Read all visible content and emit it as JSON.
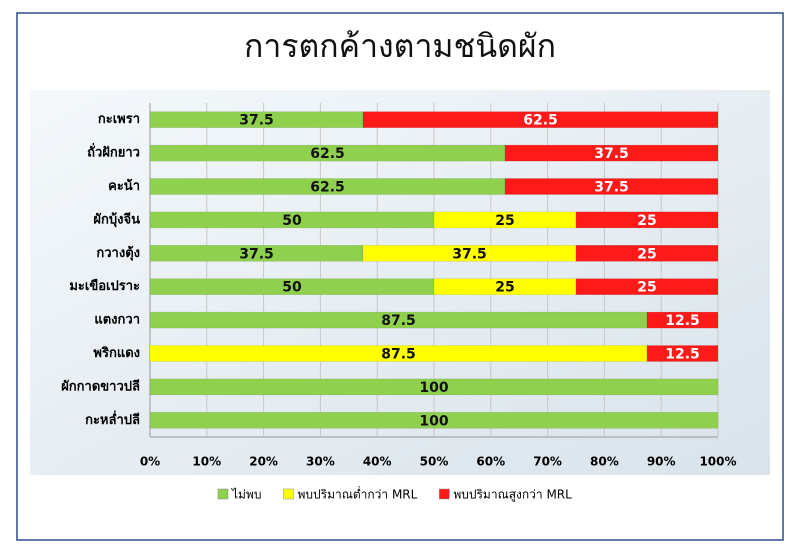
{
  "chart_data": {
    "type": "stacked-barh",
    "title": "การตกค้างตามชนิดผัก",
    "categories": [
      "กะเพรา",
      "ถั่วฝักยาว",
      "คะน้า",
      "ผักบุ้งจีน",
      "กวางตุ้ง",
      "มะเขือเปราะ",
      "แตงกวา",
      "พริกแดง",
      "ผักกาดขาวปลี",
      "กะหล่ำปลี"
    ],
    "series": [
      {
        "name": "ไม่พบ",
        "color": "#8fd14f",
        "values": [
          37.5,
          62.5,
          62.5,
          50,
          37.5,
          50,
          87.5,
          0,
          100,
          100
        ]
      },
      {
        "name": "พบปริมาณต่ำกว่า MRL",
        "color": "#ffff00",
        "values": [
          0,
          0,
          0,
          25,
          37.5,
          25,
          0,
          87.5,
          0,
          0
        ]
      },
      {
        "name": "พบปริมาณสูงกว่า MRL",
        "color": "#ff1a1a",
        "values": [
          62.5,
          37.5,
          37.5,
          25,
          25,
          25,
          12.5,
          12.5,
          0,
          0
        ]
      }
    ],
    "xlim": [
      0,
      100
    ],
    "xticks": [
      {
        "value": 0,
        "label": "0%"
      },
      {
        "value": 10,
        "label": "10%"
      },
      {
        "value": 20,
        "label": "20%"
      },
      {
        "value": 30,
        "label": "30%"
      },
      {
        "value": 40,
        "label": "40%"
      },
      {
        "value": 50,
        "label": "50%"
      },
      {
        "value": 60,
        "label": "60%"
      },
      {
        "value": 70,
        "label": "70%"
      },
      {
        "value": 80,
        "label": "80%"
      },
      {
        "value": 90,
        "label": "90%"
      },
      {
        "value": 100,
        "label": "100%"
      }
    ],
    "grid": true,
    "legend": "bottom"
  }
}
